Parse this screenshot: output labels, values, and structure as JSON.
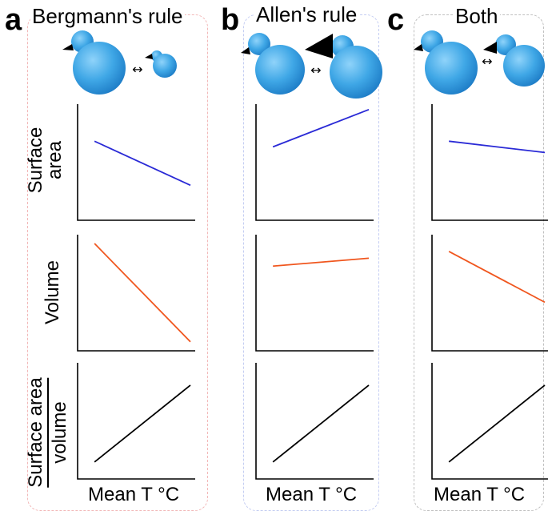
{
  "panels": [
    {
      "letter": "a",
      "title": "Bergmann's rule",
      "xlabel": "Mean T °C",
      "border_color": "#f2b8b8"
    },
    {
      "letter": "b",
      "title": "Allen's rule",
      "xlabel": "Mean T °C",
      "border_color": "#c4cdf2"
    },
    {
      "letter": "c",
      "title": "Both",
      "xlabel": "Mean T °C",
      "border_color": "#c0c0c0"
    }
  ],
  "row_labels": {
    "surface_area": [
      "Surface",
      "area"
    ],
    "volume": "Volume",
    "ratio_numerator": "Surface area",
    "ratio_denominator": "volume"
  },
  "arrow_glyph": "↔",
  "colors": {
    "surface_area_line": "#2a2ad6",
    "volume_line": "#f0561e",
    "ratio_line": "#000000",
    "bird_body": "#3fa7e6",
    "bird_beak": "#000000"
  },
  "chart_data": [
    {
      "type": "line",
      "panel": "a",
      "xlabel": "Mean T °C",
      "ylabel": "Surface area",
      "trend": "decreasing",
      "x": [
        0.15,
        1.0
      ],
      "values": [
        0.7,
        0.31
      ]
    },
    {
      "type": "line",
      "panel": "a",
      "xlabel": "Mean T °C",
      "ylabel": "Volume",
      "trend": "decreasing",
      "x": [
        0.15,
        1.0
      ],
      "values": [
        0.95,
        0.08
      ]
    },
    {
      "type": "line",
      "panel": "a",
      "xlabel": "Mean T °C",
      "ylabel": "Surface area / volume",
      "trend": "increasing",
      "x": [
        0.15,
        1.0
      ],
      "values": [
        0.15,
        0.83
      ]
    },
    {
      "type": "line",
      "panel": "b",
      "xlabel": "Mean T °C",
      "ylabel": "Surface area",
      "trend": "increasing",
      "x": [
        0.15,
        1.0
      ],
      "values": [
        0.65,
        0.98
      ]
    },
    {
      "type": "line",
      "panel": "b",
      "xlabel": "Mean T °C",
      "ylabel": "Volume",
      "trend": "flat",
      "x": [
        0.15,
        1.0
      ],
      "values": [
        0.75,
        0.82
      ]
    },
    {
      "type": "line",
      "panel": "b",
      "xlabel": "Mean T °C",
      "ylabel": "Surface area / volume",
      "trend": "increasing",
      "x": [
        0.15,
        1.0
      ],
      "values": [
        0.15,
        0.83
      ]
    },
    {
      "type": "line",
      "panel": "c",
      "xlabel": "Mean T °C",
      "ylabel": "Surface area",
      "trend": "slightly decreasing",
      "x": [
        0.15,
        1.0
      ],
      "values": [
        0.7,
        0.6
      ]
    },
    {
      "type": "line",
      "panel": "c",
      "xlabel": "Mean T °C",
      "ylabel": "Volume",
      "trend": "decreasing",
      "x": [
        0.15,
        1.0
      ],
      "values": [
        0.88,
        0.43
      ]
    },
    {
      "type": "line",
      "panel": "c",
      "xlabel": "Mean T °C",
      "ylabel": "Surface area / volume",
      "trend": "increasing",
      "x": [
        0.15,
        1.0
      ],
      "values": [
        0.15,
        0.83
      ]
    }
  ]
}
